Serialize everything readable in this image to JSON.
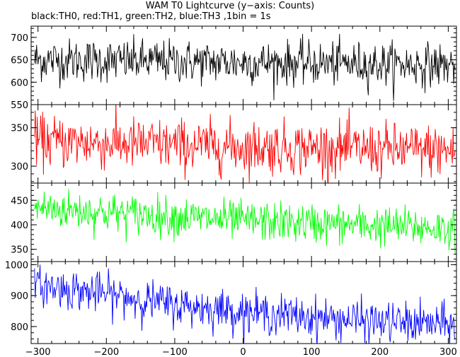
{
  "title": "WAM T0 Lightcurve (y−axis: Counts)",
  "subtitle": "black:TH0, red:TH1, green:TH2, blue:TH3 ,1bin = 1s",
  "chart_data": {
    "type": "line",
    "xlim": [
      -310,
      312
    ],
    "x_ticks": [
      -300,
      -200,
      -100,
      0,
      100,
      200,
      300
    ],
    "x_tick_labels": [
      "−300",
      "−200",
      "−100",
      "0",
      "100",
      "200",
      "300"
    ],
    "panels": [
      {
        "series": "TH0",
        "color": "#000000",
        "ylim": [
          550,
          725
        ],
        "y_ticks": [
          550,
          600,
          650,
          700
        ],
        "y_tick_labels": [
          "550",
          "600",
          "650",
          "700"
        ],
        "trend": [
          [
            -310,
            650
          ],
          [
            -200,
            648
          ],
          [
            0,
            644
          ],
          [
            312,
            638
          ]
        ],
        "noise_sigma": 24,
        "x_start": -305,
        "x_end": 310
      },
      {
        "series": "TH1",
        "color": "#ff0000",
        "ylim": [
          278,
          380
        ],
        "y_ticks": [
          300,
          350
        ],
        "y_tick_labels": [
          "300",
          "350"
        ],
        "trend": [
          [
            -310,
            333
          ],
          [
            -200,
            330
          ],
          [
            0,
            325
          ],
          [
            312,
            320
          ]
        ],
        "noise_sigma": 17,
        "x_start": -305,
        "x_end": 310
      },
      {
        "series": "TH2",
        "color": "#00ff00",
        "ylim": [
          325,
          485
        ],
        "y_ticks": [
          350,
          400,
          450
        ],
        "y_tick_labels": [
          "350",
          "400",
          "450"
        ],
        "trend": [
          [
            -310,
            435
          ],
          [
            -200,
            425
          ],
          [
            0,
            408
          ],
          [
            312,
            392
          ]
        ],
        "noise_sigma": 20,
        "x_start": -305,
        "x_end": 310
      },
      {
        "series": "TH3",
        "color": "#0000ff",
        "ylim": [
          745,
          1010
        ],
        "y_ticks": [
          800,
          900,
          1000
        ],
        "y_tick_labels": [
          "800",
          "900",
          "1000"
        ],
        "trend": [
          [
            -310,
            935
          ],
          [
            -200,
            905
          ],
          [
            -100,
            870
          ],
          [
            0,
            848
          ],
          [
            100,
            830
          ],
          [
            200,
            815
          ],
          [
            312,
            805
          ]
        ],
        "noise_sigma": 32,
        "x_start": -305,
        "x_end": 310
      }
    ],
    "grid": false
  }
}
